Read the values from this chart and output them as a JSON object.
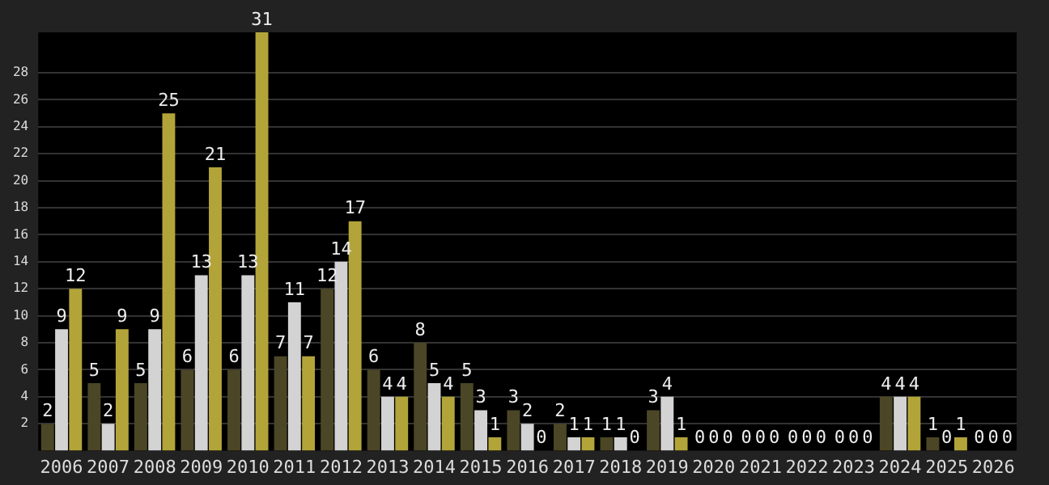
{
  "chart_data": {
    "type": "bar",
    "categories": [
      "2006",
      "2007",
      "2008",
      "2009",
      "2010",
      "2011",
      "2012",
      "2013",
      "2014",
      "2015",
      "2016",
      "2017",
      "2018",
      "2019",
      "2020",
      "2021",
      "2022",
      "2023",
      "2024",
      "2025",
      "2026"
    ],
    "series": [
      {
        "color": "#4b4625",
        "values": [
          2,
          5,
          5,
          6,
          6,
          7,
          12,
          6,
          8,
          5,
          3,
          2,
          1,
          3,
          0,
          0,
          0,
          0,
          4,
          1,
          0
        ]
      },
      {
        "color": "#d3d3d3",
        "values": [
          9,
          2,
          9,
          13,
          13,
          11,
          14,
          4,
          5,
          3,
          2,
          1,
          1,
          4,
          0,
          0,
          0,
          0,
          4,
          0,
          0
        ]
      },
      {
        "color": "#b3a43a",
        "values": [
          12,
          9,
          25,
          21,
          31,
          7,
          17,
          4,
          4,
          1,
          0,
          1,
          0,
          1,
          0,
          0,
          0,
          0,
          4,
          1,
          0
        ]
      }
    ],
    "ylim": [
      0,
      31
    ],
    "yticks": [
      2,
      4,
      6,
      8,
      10,
      12,
      14,
      16,
      18,
      20,
      22,
      24,
      26,
      28
    ],
    "grid": "y",
    "data_labels": true,
    "legend": false
  }
}
